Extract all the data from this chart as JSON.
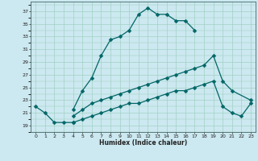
{
  "xlabel": "Humidex (Indice chaleur)",
  "bg_color": "#cce8f0",
  "line_color": "#006666",
  "grid_color": "#99ccbb",
  "xlim": [
    -0.5,
    23.5
  ],
  "ylim": [
    18.0,
    38.5
  ],
  "xticks": [
    0,
    1,
    2,
    3,
    4,
    5,
    6,
    7,
    8,
    9,
    10,
    11,
    12,
    13,
    14,
    15,
    16,
    17,
    18,
    19,
    20,
    21,
    22,
    23
  ],
  "yticks": [
    19,
    21,
    23,
    25,
    27,
    29,
    31,
    33,
    35,
    37
  ],
  "line1_x": [
    0,
    1,
    2,
    3,
    4
  ],
  "line1_y": [
    22.0,
    21.0,
    19.5,
    19.5,
    19.5
  ],
  "line2_x": [
    4,
    5,
    6,
    7,
    8,
    9,
    10,
    11,
    12,
    13,
    14,
    15,
    16,
    17
  ],
  "line2_y": [
    21.5,
    24.5,
    26.5,
    30.0,
    32.5,
    33.0,
    34.0,
    36.5,
    37.5,
    36.5,
    36.5,
    35.5,
    35.5,
    34.0
  ],
  "line3_x": [
    4,
    5,
    6,
    7,
    8,
    9,
    10,
    11,
    12,
    13,
    14,
    15,
    16,
    17,
    18,
    19,
    20,
    21,
    23
  ],
  "line3_y": [
    20.5,
    21.5,
    22.5,
    23.0,
    23.5,
    24.0,
    24.5,
    25.0,
    25.5,
    26.0,
    26.5,
    27.0,
    27.5,
    28.0,
    28.5,
    30.0,
    26.0,
    24.5,
    23.0
  ],
  "line4_x": [
    4,
    5,
    6,
    7,
    8,
    9,
    10,
    11,
    12,
    13,
    14,
    15,
    16,
    17,
    18,
    19,
    20,
    21,
    22,
    23
  ],
  "line4_y": [
    19.5,
    20.0,
    20.5,
    21.0,
    21.5,
    22.0,
    22.5,
    22.5,
    23.0,
    23.5,
    24.0,
    24.5,
    24.5,
    25.0,
    25.5,
    26.0,
    22.0,
    21.0,
    20.5,
    22.5
  ],
  "markersize": 2.5,
  "linewidth": 0.9
}
